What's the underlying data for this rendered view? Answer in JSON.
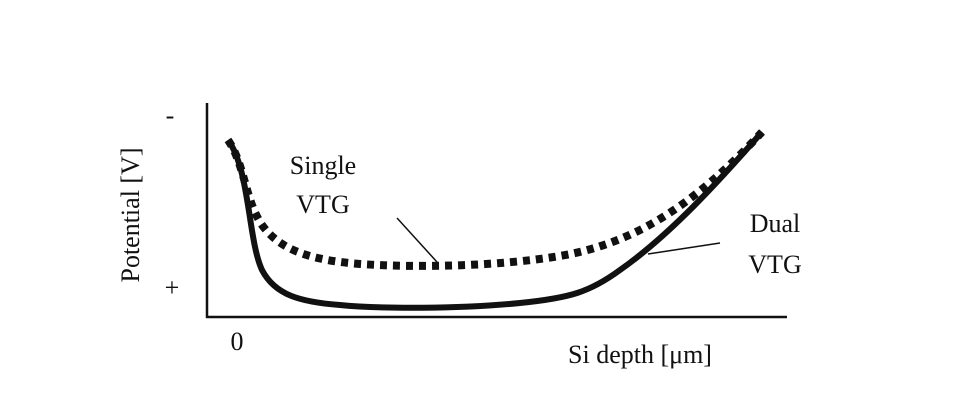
{
  "axes": {
    "y_label": "Potential [V]",
    "x_label": "Si depth [μm]",
    "y_top": "-",
    "y_bottom": "+",
    "x_origin": "0"
  },
  "curves": [
    {
      "label_lines": [
        "Single",
        "VTG"
      ]
    },
    {
      "label_lines": [
        "Dual",
        "VTG"
      ]
    }
  ]
}
